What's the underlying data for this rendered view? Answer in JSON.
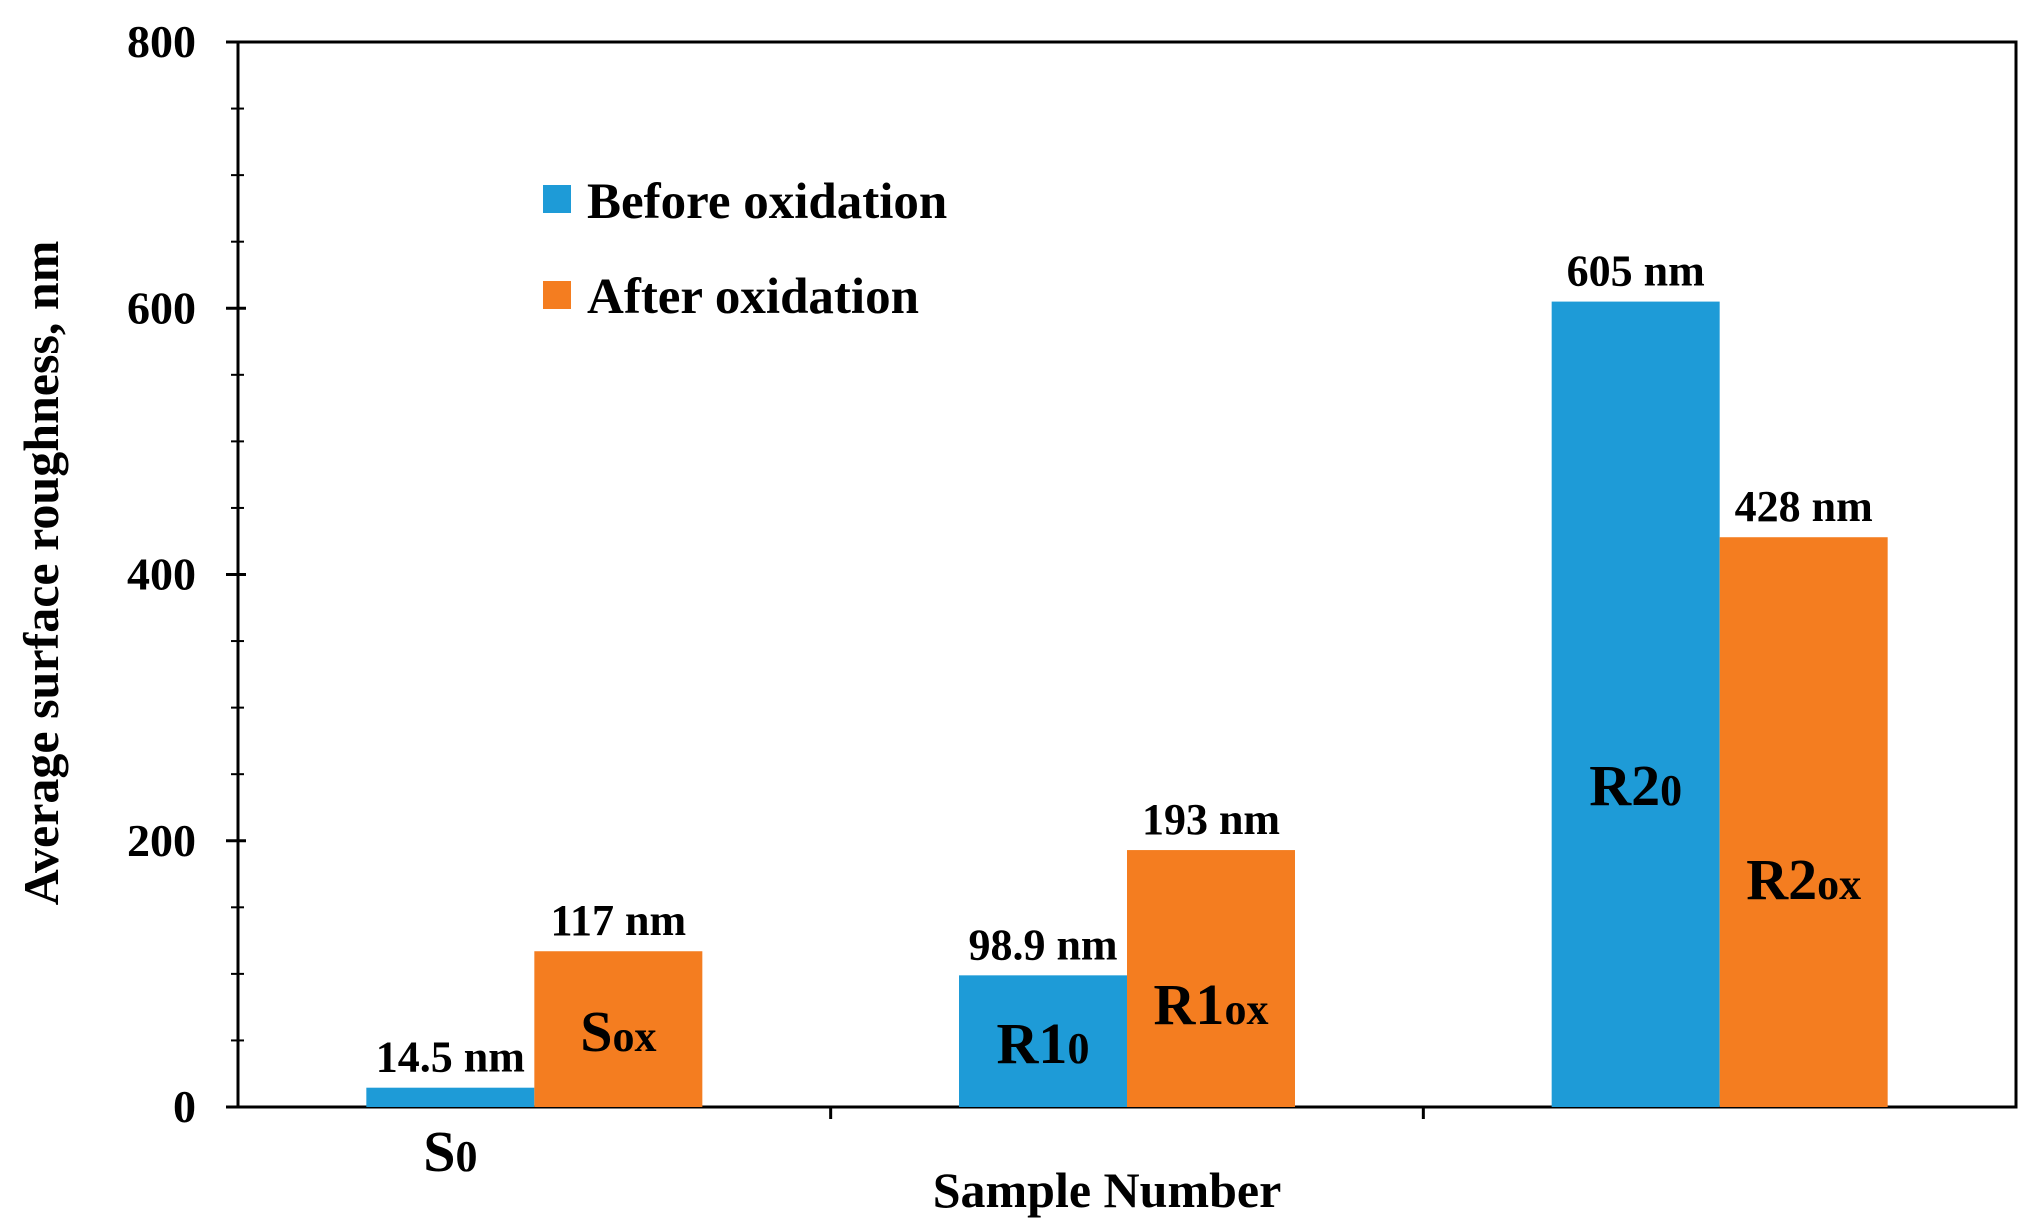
{
  "chart_data": {
    "type": "bar",
    "xlabel": "Sample Number",
    "ylabel": "Average surface roughness, nm",
    "ylim": [
      0,
      800
    ],
    "yticks": [
      0,
      200,
      400,
      600,
      800
    ],
    "grid": false,
    "legend_position": "top-left",
    "categories": [
      "S",
      "R1",
      "R2"
    ],
    "series": [
      {
        "name": "Before oxidation",
        "color": "#1E9BD7",
        "values": [
          14.5,
          98.9,
          605
        ],
        "value_labels": [
          "14.5 nm",
          "98.9 nm",
          "605 nm"
        ],
        "bar_tags": [
          {
            "main": "S",
            "sub": "0"
          },
          {
            "main": "R1",
            "sub": "0"
          },
          {
            "main": "R2",
            "sub": "0"
          }
        ]
      },
      {
        "name": "After oxidation",
        "color": "#F47D20",
        "values": [
          117,
          193,
          428
        ],
        "value_labels": [
          "117 nm",
          "193 nm",
          "428 nm"
        ],
        "bar_tags": [
          {
            "main": "S",
            "sub": "ox"
          },
          {
            "main": "R1",
            "sub": "ox"
          },
          {
            "main": "R2",
            "sub": "ox"
          }
        ]
      }
    ]
  }
}
